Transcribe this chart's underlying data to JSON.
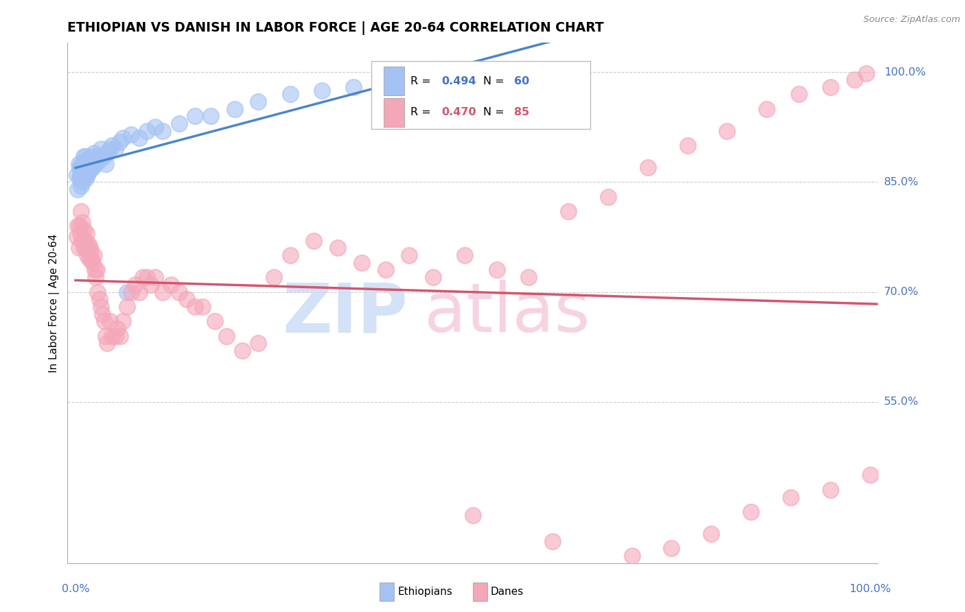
{
  "title": "ETHIOPIAN VS DANISH IN LABOR FORCE | AGE 20-64 CORRELATION CHART",
  "source": "Source: ZipAtlas.com",
  "ylabel": "In Labor Force | Age 20-64",
  "yticks_labels": [
    "55.0%",
    "70.0%",
    "85.0%",
    "100.0%"
  ],
  "yticks_values": [
    0.55,
    0.7,
    0.85,
    1.0
  ],
  "xlim": [
    0.0,
    1.0
  ],
  "ylim": [
    0.33,
    1.04
  ],
  "legend_R_eth": "0.494",
  "legend_N_eth": "60",
  "legend_R_dan": "0.470",
  "legend_N_dan": "85",
  "blue_scatter_color": "#a4c2f4",
  "pink_scatter_color": "#f4a7b9",
  "blue_line_color": "#4a86c8",
  "pink_line_color": "#d5546e",
  "label_color": "#4472c4",
  "grid_color": "#cccccc",
  "eth_x": [
    0.002,
    0.003,
    0.004,
    0.005,
    0.005,
    0.006,
    0.007,
    0.007,
    0.008,
    0.008,
    0.009,
    0.009,
    0.01,
    0.01,
    0.011,
    0.011,
    0.012,
    0.012,
    0.013,
    0.013,
    0.014,
    0.015,
    0.015,
    0.016,
    0.017,
    0.018,
    0.019,
    0.02,
    0.022,
    0.023,
    0.025,
    0.027,
    0.03,
    0.032,
    0.035,
    0.038,
    0.04,
    0.043,
    0.046,
    0.05,
    0.055,
    0.06,
    0.065,
    0.07,
    0.08,
    0.09,
    0.1,
    0.11,
    0.13,
    0.15,
    0.17,
    0.2,
    0.23,
    0.27,
    0.31,
    0.35,
    0.4,
    0.45,
    0.52,
    0.58
  ],
  "eth_y": [
    0.86,
    0.84,
    0.875,
    0.855,
    0.87,
    0.86,
    0.845,
    0.87,
    0.855,
    0.875,
    0.85,
    0.865,
    0.87,
    0.885,
    0.86,
    0.875,
    0.87,
    0.885,
    0.855,
    0.875,
    0.875,
    0.86,
    0.88,
    0.87,
    0.865,
    0.88,
    0.87,
    0.885,
    0.87,
    0.89,
    0.875,
    0.885,
    0.88,
    0.895,
    0.885,
    0.875,
    0.89,
    0.895,
    0.9,
    0.895,
    0.905,
    0.91,
    0.7,
    0.915,
    0.91,
    0.92,
    0.925,
    0.92,
    0.93,
    0.94,
    0.94,
    0.95,
    0.96,
    0.97,
    0.975,
    0.98,
    0.988,
    0.99,
    0.995,
    0.998
  ],
  "dan_x": [
    0.002,
    0.003,
    0.004,
    0.005,
    0.006,
    0.007,
    0.008,
    0.009,
    0.01,
    0.01,
    0.012,
    0.013,
    0.014,
    0.015,
    0.016,
    0.017,
    0.018,
    0.019,
    0.02,
    0.022,
    0.023,
    0.024,
    0.025,
    0.027,
    0.028,
    0.03,
    0.032,
    0.034,
    0.036,
    0.038,
    0.04,
    0.043,
    0.046,
    0.05,
    0.053,
    0.056,
    0.06,
    0.065,
    0.07,
    0.075,
    0.08,
    0.085,
    0.09,
    0.095,
    0.1,
    0.11,
    0.12,
    0.13,
    0.14,
    0.15,
    0.16,
    0.175,
    0.19,
    0.21,
    0.23,
    0.25,
    0.27,
    0.3,
    0.33,
    0.36,
    0.39,
    0.42,
    0.45,
    0.49,
    0.53,
    0.57,
    0.62,
    0.67,
    0.72,
    0.77,
    0.82,
    0.87,
    0.91,
    0.95,
    0.98,
    0.995,
    0.5,
    0.6,
    0.7,
    0.75,
    0.8,
    0.85,
    0.9,
    0.95,
    1.0
  ],
  "dan_y": [
    0.775,
    0.79,
    0.76,
    0.79,
    0.78,
    0.81,
    0.77,
    0.795,
    0.76,
    0.785,
    0.77,
    0.76,
    0.78,
    0.75,
    0.765,
    0.745,
    0.76,
    0.755,
    0.745,
    0.74,
    0.75,
    0.73,
    0.72,
    0.73,
    0.7,
    0.69,
    0.68,
    0.67,
    0.66,
    0.64,
    0.63,
    0.66,
    0.64,
    0.64,
    0.65,
    0.64,
    0.66,
    0.68,
    0.7,
    0.71,
    0.7,
    0.72,
    0.72,
    0.71,
    0.72,
    0.7,
    0.71,
    0.7,
    0.69,
    0.68,
    0.68,
    0.66,
    0.64,
    0.62,
    0.63,
    0.72,
    0.75,
    0.77,
    0.76,
    0.74,
    0.73,
    0.75,
    0.72,
    0.75,
    0.73,
    0.72,
    0.81,
    0.83,
    0.87,
    0.9,
    0.92,
    0.95,
    0.97,
    0.98,
    0.99,
    0.998,
    0.395,
    0.36,
    0.34,
    0.35,
    0.37,
    0.4,
    0.42,
    0.43,
    0.45
  ]
}
